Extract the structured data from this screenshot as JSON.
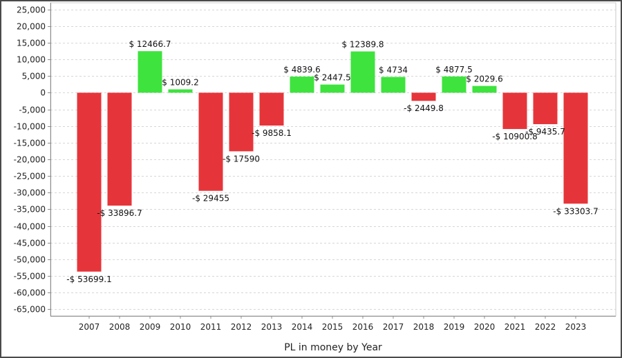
{
  "chart_data": {
    "type": "bar",
    "title": "",
    "xlabel": "PL in money by Year",
    "ylabel": "",
    "categories": [
      "2007",
      "2008",
      "2009",
      "2010",
      "2011",
      "2012",
      "2013",
      "2014",
      "2015",
      "2016",
      "2017",
      "2018",
      "2019",
      "2020",
      "2021",
      "2022",
      "2023"
    ],
    "values": [
      -53699.1,
      -33896.7,
      12466.7,
      1009.2,
      -29455,
      -17590,
      -9858.1,
      4839.6,
      2447.5,
      12389.8,
      4734,
      -2449.8,
      4877.5,
      2029.6,
      -10900.8,
      -9435.7,
      -33303.7
    ],
    "data_labels": [
      "-$ 53699.1",
      "-$ 33896.7",
      "$ 12466.7",
      "$ 1009.2",
      "-$ 29455",
      "-$ 17590",
      "-$ 9858.1",
      "$ 4839.6",
      "$ 2447.5",
      "$ 12389.8",
      "$ 4734",
      "-$ 2449.8",
      "$ 4877.5",
      "$ 2029.6",
      "-$ 10900.8",
      "-$ 9435.7",
      "-$ 33303.7"
    ],
    "yticks": [
      "25,000",
      "20,000",
      "15,000",
      "10,000",
      "5,000",
      "0",
      "-5,000",
      "-10,000",
      "-15,000",
      "-20,000",
      "-25,000",
      "-30,000",
      "-35,000",
      "-40,000",
      "-45,000",
      "-50,000",
      "-55,000",
      "-60,000",
      "-65,000"
    ],
    "ytick_values": [
      25000,
      20000,
      15000,
      10000,
      5000,
      0,
      -5000,
      -10000,
      -15000,
      -20000,
      -25000,
      -30000,
      -35000,
      -40000,
      -45000,
      -50000,
      -55000,
      -60000,
      -65000
    ],
    "ylim": [
      -67000,
      27000
    ],
    "grid": true,
    "legend": "none",
    "colors": {
      "positive": "#3ee33e",
      "negative": "#e6353a",
      "grid": "#d6d6d6",
      "axis": "#8c8c8c"
    }
  }
}
